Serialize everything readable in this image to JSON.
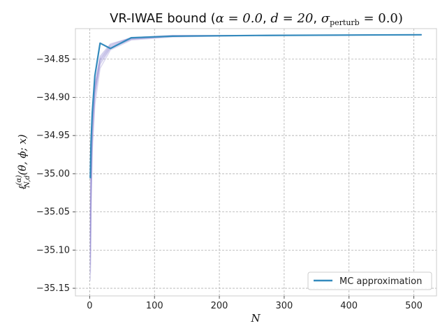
{
  "chart_data": {
    "type": "line",
    "title": "VR-IWAE bound (α = 0.0, d = 20, σ_perturb = 0.0)",
    "title_parts": {
      "prefix": "VR-IWAE bound (",
      "alpha": "α = 0.0",
      "d": "d = 20",
      "sigma": "σ",
      "sigma_sub": "perturb",
      "sigma_value": " = 0.0)"
    },
    "xlabel": "N",
    "ylabel": "ℓ(α)N,d(θ, ϕ; x)",
    "ylabel_parts": {
      "main": "ℓ",
      "sup": "(α)",
      "sub": "N,d",
      "args": "(θ, ϕ; x)"
    },
    "xlim": [
      -22,
      535
    ],
    "ylim": [
      -35.16,
      -34.81
    ],
    "x_ticks": [
      0,
      100,
      200,
      300,
      400,
      500
    ],
    "y_ticks": [
      -35.15,
      -35.1,
      -35.05,
      -35.0,
      -34.95,
      -34.9,
      -34.85
    ],
    "y_tick_labels": [
      "−35.15",
      "−35.10",
      "−35.05",
      "−35.00",
      "−34.95",
      "−34.90",
      "−34.85"
    ],
    "grid": true,
    "legend_position": "lower-right",
    "x": [
      1,
      2,
      4,
      8,
      16,
      32,
      64,
      128,
      256,
      512
    ],
    "series": [
      {
        "name": "MC approximation",
        "color": "#348abd",
        "values": [
          -35.006,
          -34.96,
          -34.92,
          -34.872,
          -34.829,
          -34.836,
          -34.822,
          -34.82,
          -34.819,
          -34.818
        ]
      }
    ],
    "background_runs": {
      "color": "#988ed5",
      "values": [
        [
          -35.14,
          -35.05,
          -34.97,
          -34.91,
          -34.862,
          -34.838,
          -34.825,
          -34.821,
          -34.819,
          -34.818
        ],
        [
          -35.13,
          -35.04,
          -34.96,
          -34.9,
          -34.857,
          -34.836,
          -34.824,
          -34.82,
          -34.819,
          -34.818
        ],
        [
          -35.12,
          -35.03,
          -34.95,
          -34.895,
          -34.855,
          -34.835,
          -34.824,
          -34.82,
          -34.819,
          -34.818
        ],
        [
          -35.11,
          -35.02,
          -34.945,
          -34.893,
          -34.853,
          -34.834,
          -34.823,
          -34.82,
          -34.819,
          -34.818
        ],
        [
          -35.1,
          -35.01,
          -34.94,
          -34.89,
          -34.851,
          -34.833,
          -34.823,
          -34.82,
          -34.819,
          -34.818
        ],
        [
          -35.09,
          -35.0,
          -34.935,
          -34.888,
          -34.85,
          -34.832,
          -34.822,
          -34.82,
          -34.819,
          -34.818
        ],
        [
          -35.08,
          -34.99,
          -34.93,
          -34.886,
          -34.848,
          -34.831,
          -34.822,
          -34.819,
          -34.819,
          -34.818
        ],
        [
          -35.06,
          -34.98,
          -34.925,
          -34.884,
          -34.846,
          -34.83,
          -34.822,
          -34.819,
          -34.819,
          -34.818
        ]
      ]
    }
  }
}
